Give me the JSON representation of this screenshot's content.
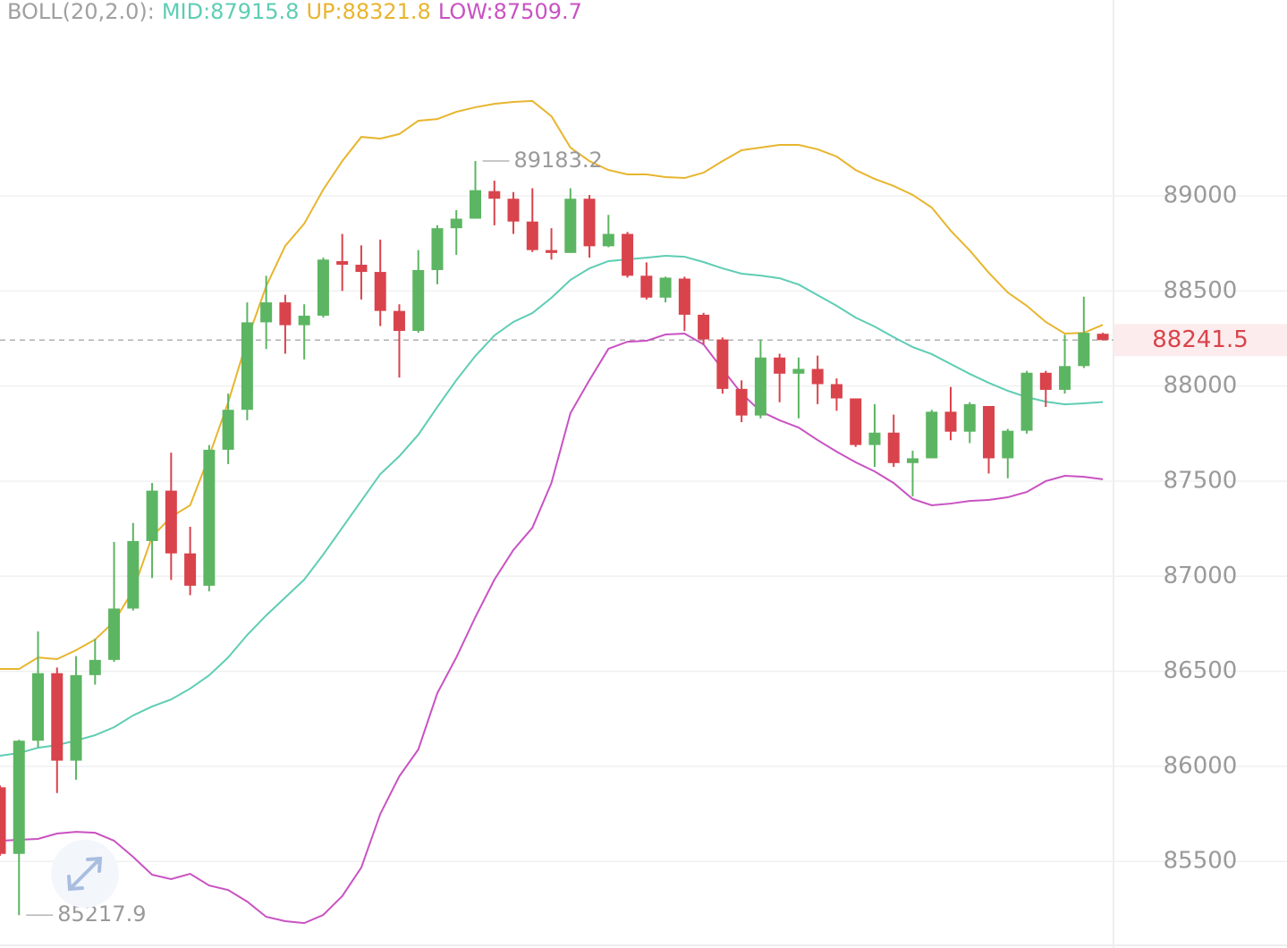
{
  "chart_data": {
    "type": "candlestick",
    "legend_prefix": "BOLL(20,2.0):",
    "candles": {
      "up_color": "#5cb562",
      "down_color": "#d9434c",
      "open": [
        85890,
        85540,
        86135,
        86490,
        86030,
        86480,
        86560,
        86830,
        87185,
        87450,
        87120,
        86950,
        87665,
        87875,
        88335,
        88440,
        88320,
        88370,
        88657,
        88638,
        88600,
        88395,
        88290,
        88610,
        88830,
        88880,
        89025,
        88985,
        88865,
        88715,
        88700,
        88985,
        88735,
        88800,
        88580,
        88465,
        88565,
        88375,
        88245,
        87985,
        87845,
        88150,
        88065,
        88090,
        88010,
        87935,
        87690,
        87755,
        87595,
        87620,
        87865,
        87760,
        87895,
        87620,
        87765,
        88070,
        87980,
        88105,
        88275
      ],
      "high": [
        85900,
        86140,
        86710,
        86520,
        86580,
        86670,
        87180,
        87280,
        87490,
        87650,
        87260,
        87690,
        87960,
        88440,
        88580,
        88480,
        88430,
        88675,
        88800,
        88740,
        88770,
        88430,
        88715,
        88845,
        88925,
        89183.2,
        89080,
        89020,
        89040,
        88830,
        89040,
        89005,
        88900,
        88810,
        88650,
        88575,
        88575,
        88385,
        88255,
        88030,
        88245,
        88170,
        88150,
        88160,
        88040,
        87935,
        87905,
        87850,
        87660,
        87875,
        87995,
        87915,
        87895,
        87775,
        88080,
        88080,
        88270,
        88470,
        88280
      ],
      "low": [
        85530,
        85217.9,
        86100,
        85860,
        85930,
        86430,
        86550,
        86820,
        86990,
        86980,
        86900,
        86920,
        87590,
        87820,
        88195,
        88170,
        88140,
        88360,
        88500,
        88455,
        88315,
        88045,
        88280,
        88535,
        88690,
        88880,
        88845,
        88800,
        88705,
        88665,
        88700,
        88675,
        88730,
        88570,
        88455,
        88440,
        88290,
        88220,
        87960,
        87810,
        87830,
        87915,
        87830,
        87905,
        87870,
        87680,
        87575,
        87575,
        87420,
        87620,
        87715,
        87700,
        87540,
        87515,
        87750,
        87890,
        87960,
        88095,
        88241.5
      ],
      "close": [
        85540,
        86135,
        86490,
        86030,
        86480,
        86560,
        86830,
        87185,
        87450,
        87120,
        86950,
        87665,
        87875,
        88335,
        88440,
        88320,
        88370,
        88665,
        88638,
        88600,
        88395,
        88290,
        88610,
        88830,
        88880,
        89030,
        88985,
        88865,
        88715,
        88700,
        88985,
        88735,
        88800,
        88580,
        88465,
        88570,
        88375,
        88245,
        87985,
        87845,
        88150,
        88065,
        88090,
        88010,
        87935,
        87690,
        87755,
        87595,
        87620,
        87865,
        87760,
        87905,
        87620,
        87765,
        88070,
        87980,
        88105,
        88280,
        88241.5
      ]
    },
    "series": [
      {
        "name": "MID",
        "legend_label": "MID:87915.8",
        "color": "#5ecdb4",
        "values": [
          86056,
          86070,
          86098,
          86112,
          86136,
          86164,
          86206,
          86268,
          86315,
          86352,
          86409,
          86479,
          86573,
          86691,
          86794,
          86888,
          86982,
          87114,
          87255,
          87396,
          87537,
          87631,
          87744,
          87890,
          88031,
          88158,
          88266,
          88337,
          88384,
          88464,
          88558,
          88619,
          88657,
          88666,
          88675,
          88685,
          88680,
          88652,
          88619,
          88591,
          88581,
          88567,
          88534,
          88478,
          88422,
          88360,
          88313,
          88257,
          88205,
          88168,
          88116,
          88064,
          88017,
          87975,
          87942,
          87918,
          87904,
          87909,
          87915.8
        ]
      },
      {
        "name": "UP",
        "legend_label": "UP:88321.8",
        "color": "#e8b52e",
        "values": [
          86512,
          86512,
          86573,
          86564,
          86611,
          86667,
          86761,
          86926,
          87208,
          87312,
          87373,
          87631,
          87914,
          88243,
          88525,
          88737,
          88854,
          89033,
          89183,
          89310,
          89301,
          89325,
          89395,
          89404,
          89442,
          89466,
          89484,
          89494,
          89499,
          89419,
          89254,
          89183,
          89136,
          89113,
          89113,
          89099,
          89094,
          89122,
          89183,
          89240,
          89254,
          89268,
          89268,
          89245,
          89207,
          89136,
          89089,
          89052,
          89005,
          88939,
          88817,
          88713,
          88596,
          88492,
          88422,
          88337,
          88276,
          88280,
          88321.8
        ]
      },
      {
        "name": "LOW",
        "legend_label": "LOW:87509.7",
        "color": "#c952c2",
        "values": [
          85609,
          85614,
          85619,
          85647,
          85656,
          85651,
          85609,
          85524,
          85430,
          85407,
          85435,
          85374,
          85350,
          85289,
          85209,
          85186,
          85176,
          85219,
          85318,
          85468,
          85750,
          85948,
          86089,
          86385,
          86573,
          86785,
          86982,
          87138,
          87255,
          87490,
          87857,
          88031,
          88196,
          88233,
          88238,
          88271,
          88276,
          88219,
          88088,
          87961,
          87867,
          87820,
          87782,
          87716,
          87655,
          87599,
          87551,
          87490,
          87406,
          87373,
          87382,
          87396,
          87401,
          87415,
          87443,
          87500,
          87528,
          87523,
          87509.7
        ]
      }
    ],
    "ylim": [
      85045,
      90030
    ],
    "yticks": [
      85500,
      86000,
      86500,
      87000,
      87500,
      88000,
      88500,
      89000
    ],
    "grid": true,
    "annotations": {
      "high_index": 25,
      "low_index": 1
    }
  }
}
